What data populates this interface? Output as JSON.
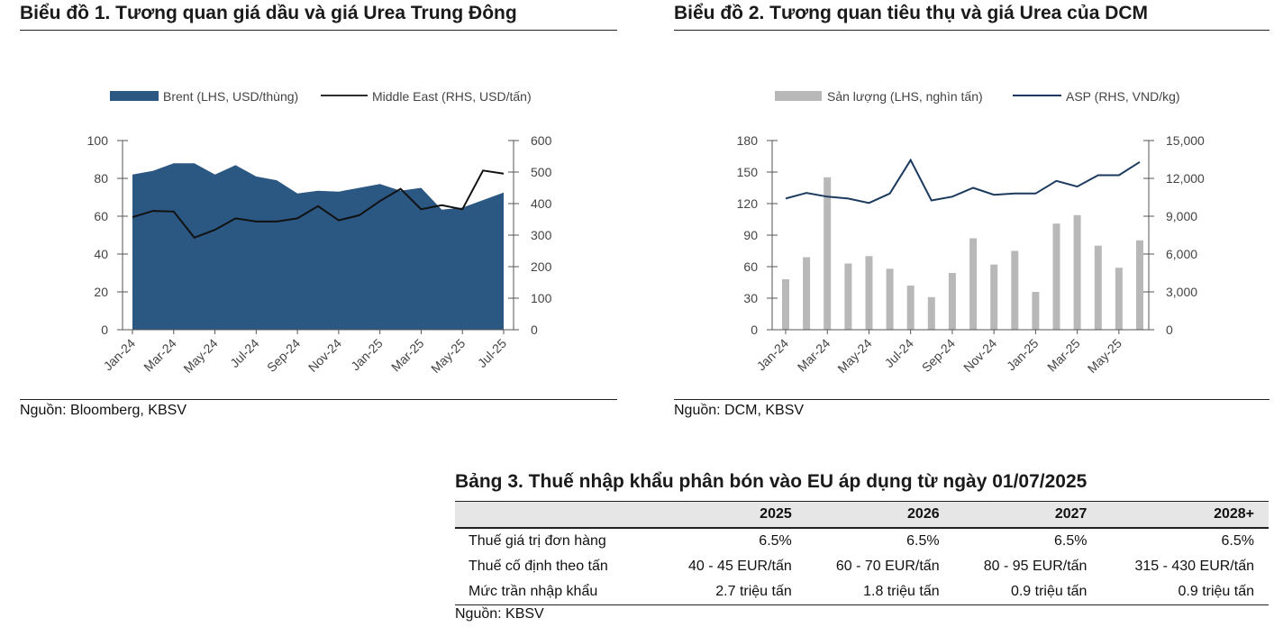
{
  "chart1": {
    "title": "Biểu đồ 1. Tương quan giá dầu và giá Urea Trung Đông",
    "source": "Nguồn: Bloomberg, KBSV",
    "legend": {
      "area": "Brent (LHS, USD/thùng)",
      "line": "Middle East (RHS, USD/tấn)"
    },
    "colors": {
      "area": "#2b5783",
      "line": "#111111"
    }
  },
  "chart2": {
    "title": "Biểu đồ 2. Tương quan tiêu thụ và giá Urea của DCM",
    "source": "Nguồn: DCM, KBSV",
    "legend": {
      "bar": "Sản lượng (LHS, nghìn tấn)",
      "line": "ASP (RHS, VND/kg)"
    },
    "colors": {
      "bar": "#b8b8b8",
      "line": "#1c3a5e"
    }
  },
  "chart_data": [
    {
      "type": "area",
      "x_tick_labels": [
        "Jan-24",
        "Mar-24",
        "May-24",
        "Jul-24",
        "Sep-24",
        "Nov-24",
        "Jan-25",
        "Mar-25",
        "May-25",
        "Jul-25"
      ],
      "left_axis": {
        "ylim": [
          0,
          100
        ],
        "ticks": [
          0,
          20,
          40,
          60,
          80,
          100
        ]
      },
      "right_axis": {
        "ylim": [
          0,
          600
        ],
        "ticks": [
          0,
          100,
          200,
          300,
          400,
          500,
          600
        ]
      },
      "series": [
        {
          "name": "Brent (LHS, USD/thùng)",
          "type": "area",
          "axis": "left",
          "values": [
            82,
            84,
            88,
            88,
            82,
            87,
            81,
            79,
            72,
            73.5,
            73,
            75,
            77,
            73.5,
            75,
            63.5,
            64.5,
            68.5,
            72.5
          ]
        },
        {
          "name": "Middle East (RHS, USD/tấn)",
          "type": "line",
          "axis": "right",
          "values": [
            357,
            377,
            375,
            292,
            317,
            353,
            343,
            343,
            353,
            392,
            347,
            363,
            408,
            447,
            382,
            395,
            382,
            505,
            495
          ]
        }
      ]
    },
    {
      "type": "bar",
      "x_tick_labels": [
        "Jan-24",
        "Mar-24",
        "May-24",
        "Jul-24",
        "Sep-24",
        "Nov-24",
        "Jan-25",
        "Mar-25",
        "May-25"
      ],
      "left_axis": {
        "ylim": [
          0,
          180
        ],
        "ticks": [
          0,
          30,
          60,
          90,
          120,
          150,
          180
        ]
      },
      "right_axis": {
        "ylim": [
          0,
          15000
        ],
        "ticks": [
          "0",
          "3,000",
          "6,000",
          "9,000",
          "12,000",
          "15,000"
        ]
      },
      "series": [
        {
          "name": "Sản lượng (LHS, nghìn tấn)",
          "type": "bar",
          "axis": "left",
          "values": [
            48,
            69,
            145,
            63,
            70,
            58,
            42,
            31,
            54,
            87,
            62,
            75,
            36,
            101,
            109,
            80,
            59,
            85
          ]
        },
        {
          "name": "ASP (RHS, VND/kg)",
          "type": "line",
          "axis": "right",
          "values": [
            10400,
            10850,
            10550,
            10400,
            10050,
            10800,
            13450,
            10250,
            10550,
            11250,
            10700,
            10800,
            10800,
            11800,
            11350,
            12250,
            12250,
            13300
          ]
        }
      ]
    }
  ],
  "table3": {
    "title": "Bảng 3. Thuế nhập khẩu phân bón vào EU áp dụng từ ngày 01/07/2025",
    "header": [
      "",
      "2025",
      "2026",
      "2027",
      "2028+"
    ],
    "rows": [
      [
        "Thuế giá trị đơn hàng",
        "6.5%",
        "6.5%",
        "6.5%",
        "6.5%"
      ],
      [
        "Thuế cố định theo tấn",
        "40 - 45 EUR/tấn",
        "60 - 70 EUR/tấn",
        "80 - 95 EUR/tấn",
        "315 - 430 EUR/tấn"
      ],
      [
        "Mức trần nhập khẩu",
        "2.7 triệu tấn",
        "1.8 triệu tấn",
        "0.9 triệu tấn",
        "0.9 triệu tấn"
      ]
    ],
    "source": "Nguồn: KBSV"
  }
}
